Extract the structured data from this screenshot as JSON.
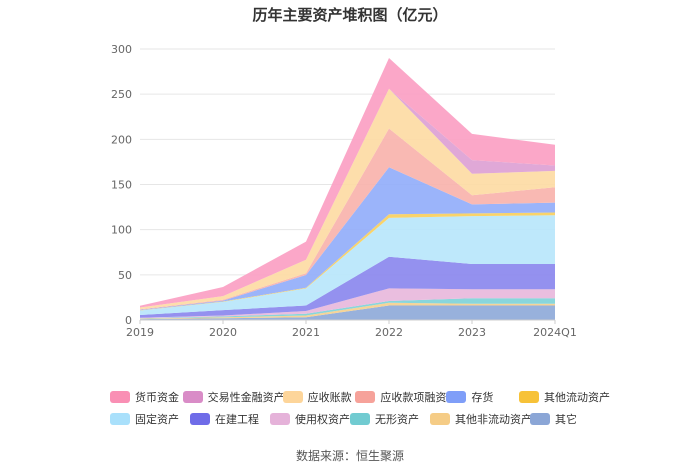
{
  "chart_data": {
    "type": "area",
    "stacked": true,
    "title": "历年主要资产堆积图（亿元）",
    "x": [
      "2019",
      "2020",
      "2021",
      "2022",
      "2023",
      "2024Q1"
    ],
    "y_ticks": [
      "0",
      "50",
      "100",
      "150",
      "200",
      "250",
      "300"
    ],
    "ylim": [
      0,
      300
    ],
    "grid": true,
    "legend_position": "bottom",
    "series": [
      {
        "name": "其它",
        "color": "#8faad9",
        "values": [
          1,
          2,
          3,
          16,
          16,
          16
        ]
      },
      {
        "name": "其他非流动资产",
        "color": "#f5d08e",
        "values": [
          0.5,
          1,
          2,
          3,
          2,
          2
        ]
      },
      {
        "name": "无形资产",
        "color": "#7fd3d8",
        "values": [
          0.5,
          1,
          2,
          2,
          6,
          6
        ]
      },
      {
        "name": "使用权资产",
        "color": "#e8b9dc",
        "values": [
          0.5,
          1,
          3,
          14,
          10,
          10
        ]
      },
      {
        "name": "在建工程",
        "color": "#8b88ee",
        "values": [
          3,
          6,
          6,
          35,
          28,
          28
        ]
      },
      {
        "name": "固定资产",
        "color": "#b8e6fb",
        "values": [
          5,
          9,
          19,
          43,
          53,
          54
        ]
      },
      {
        "name": "其他流动资产",
        "color": "#f9cf5d",
        "values": [
          0.3,
          0.5,
          0.8,
          4,
          3,
          3
        ]
      },
      {
        "name": "存货",
        "color": "#92aefa",
        "values": [
          0.5,
          1,
          14,
          52,
          10,
          11
        ]
      },
      {
        "name": "应收款项融资",
        "color": "#f8b3ad",
        "values": [
          0.5,
          1,
          2,
          43,
          10,
          17
        ]
      },
      {
        "name": "应收账款",
        "color": "#fddba4",
        "values": [
          2,
          4,
          15,
          44,
          24,
          18
        ]
      },
      {
        "name": "交易性金融资产",
        "color": "#dda1d4",
        "values": [
          0,
          0,
          0,
          0,
          15,
          6
        ]
      },
      {
        "name": "货币资金",
        "color": "#fba0c3",
        "values": [
          2,
          10,
          20,
          34,
          29,
          23
        ]
      }
    ],
    "source": "数据来源：恒生聚源"
  },
  "legend": {
    "rows": [
      [
        {
          "name": "货币资金",
          "color": "#f98fb4"
        },
        {
          "name": "交易性金融资产",
          "color": "#d98cc7"
        },
        {
          "name": "应收账款",
          "color": "#fdd59a"
        },
        {
          "name": "应收款项融资",
          "color": "#f6a29a"
        },
        {
          "name": "存货",
          "color": "#7f9ef8"
        },
        {
          "name": "其他流动资产",
          "color": "#f7c238"
        }
      ],
      [
        {
          "name": "固定资产",
          "color": "#a9e0fb"
        },
        {
          "name": "在建工程",
          "color": "#6f6ce8"
        },
        {
          "name": "使用权资产",
          "color": "#e5b2d9"
        },
        {
          "name": "无形资产",
          "color": "#71cbd1"
        },
        {
          "name": "其他非流动资产",
          "color": "#f5cc86"
        },
        {
          "name": "其它",
          "color": "#8ba6d6"
        }
      ]
    ]
  }
}
